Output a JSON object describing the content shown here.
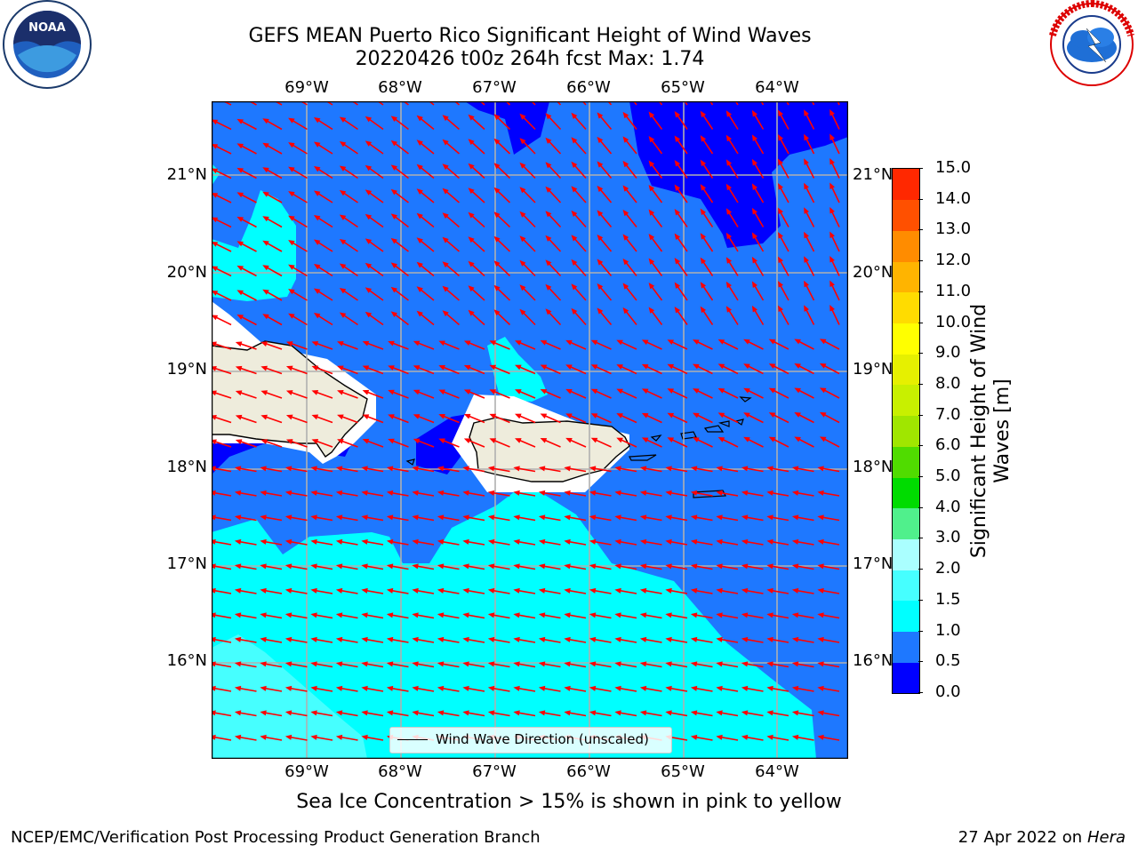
{
  "header": {
    "title_line1": "GEFS MEAN Puerto Rico Significant Height of Wind Waves",
    "title_line2": "20220426 t00z 264h fcst   Max: 1.74"
  },
  "logos": {
    "noaa_text": "NOAA",
    "noaa_ring_text": "NATIONAL OCEANIC AND ATMOSPHERIC ADMINISTRATION · U.S. DEPARTMENT OF COMMERCE",
    "nws_ring_text": "NATIONAL WEATHER SERVICE"
  },
  "map": {
    "lon_labels": [
      "69°W",
      "68°W",
      "67°W",
      "66°W",
      "65°W",
      "64°W"
    ],
    "lat_labels": [
      "21°N",
      "20°N",
      "19°N",
      "18°N",
      "17°N",
      "16°N"
    ],
    "legend_label": "Wind Wave Direction (unscaled)",
    "wind_direction": "east-northeasterly, pointing west-southwest"
  },
  "colorbar": {
    "label": "Significant Height of Wind Waves [m]",
    "ticks": [
      "0.0",
      "0.5",
      "1.0",
      "1.5",
      "2.0",
      "3.0",
      "4.0",
      "5.0",
      "6.0",
      "7.0",
      "8.0",
      "9.0",
      "10.0",
      "11.0",
      "12.0",
      "13.0",
      "14.0",
      "15.0"
    ],
    "colors": [
      "#0000ff",
      "#1e78ff",
      "#00ffff",
      "#46ffff",
      "#aaffff",
      "#50f08c",
      "#00dc00",
      "#50dc00",
      "#a0e600",
      "#c8f000",
      "#e6f000",
      "#ffff00",
      "#ffdc00",
      "#ffb400",
      "#ff8c00",
      "#ff5000",
      "#ff2800"
    ],
    "land_color": "#eeecdc",
    "arrow_color": "#ff0000"
  },
  "caption": "Sea Ice Concentration > 15% is shown in pink to yellow",
  "footer": {
    "left": "NCEP/EMC/Verification Post Processing Product Generation Branch",
    "right_prefix": "27 Apr 2022 on ",
    "right_italic": "Hera"
  }
}
